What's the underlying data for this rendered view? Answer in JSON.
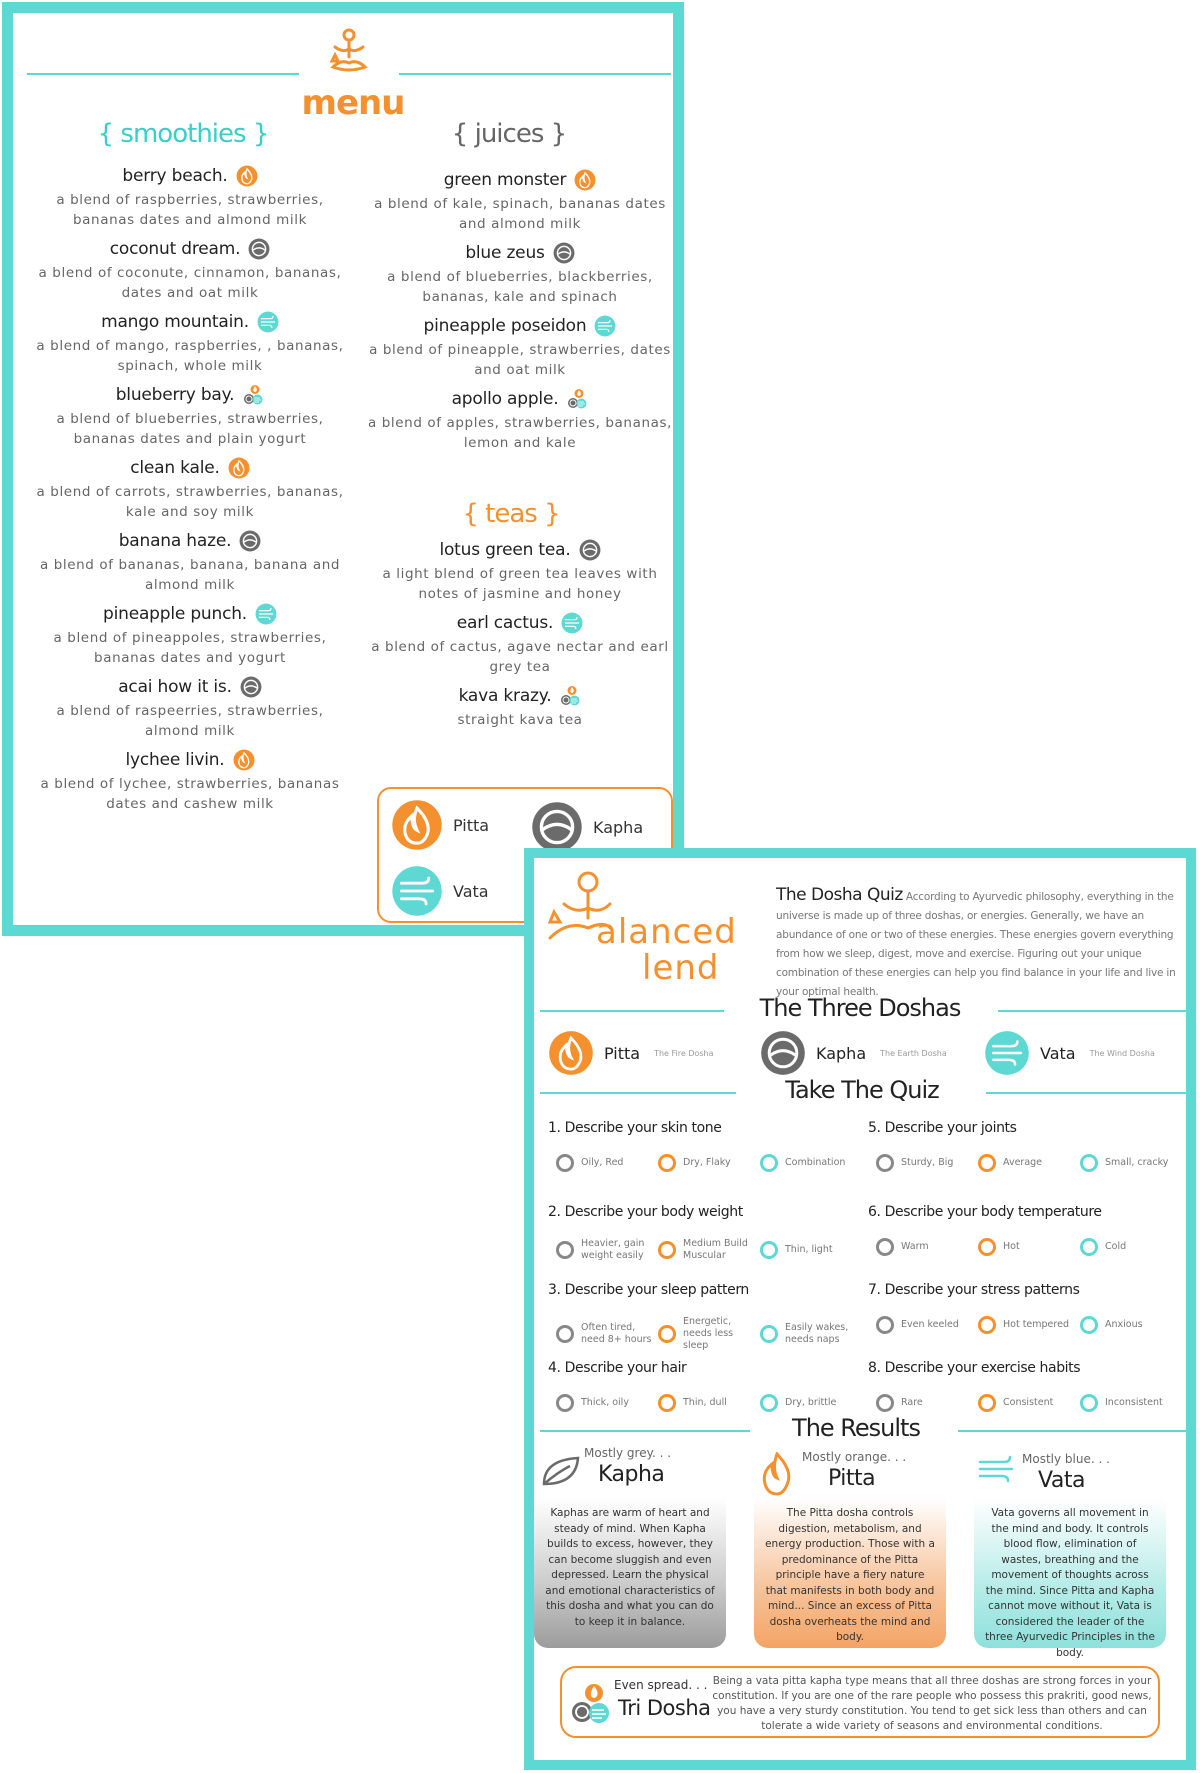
{
  "menu": {
    "title": "menu",
    "sections": {
      "smoothies": "{ smoothies }",
      "juices": "{ juices }",
      "teas": "{ teas }"
    },
    "smoothies": [
      {
        "name": "berry beach.",
        "desc": "a blend of raspberries, strawberries, bananas dates and almond milk",
        "dosha": "pitta"
      },
      {
        "name": "coconut dream.",
        "desc": "a blend of coconute, cinnamon, bananas, dates and oat milk",
        "dosha": "kapha"
      },
      {
        "name": "mango mountain.",
        "desc": "a blend of mango, raspberries, , bananas, spinach, whole milk",
        "dosha": "vata"
      },
      {
        "name": "blueberry bay.",
        "desc": "a blend of blueberries, strawberries, bananas dates and plain yogurt",
        "dosha": "tri"
      },
      {
        "name": "clean kale.",
        "desc": "a blend of carrots, strawberries, bananas, kale and soy milk",
        "dosha": "pitta"
      },
      {
        "name": "banana haze.",
        "desc": "a blend of bananas, banana, banana and almond milk",
        "dosha": "kapha"
      },
      {
        "name": "pineapple punch.",
        "desc": "a blend of pineappoles, strawberries, bananas dates and yogurt",
        "dosha": "vata"
      },
      {
        "name": "acai how it is.",
        "desc": "a blend of raspeerries, strawberries, almond milk",
        "dosha": "kapha"
      },
      {
        "name": "lychee livin.",
        "desc": "a blend of lychee, strawberries, bananas dates and cashew milk",
        "dosha": "pitta"
      }
    ],
    "juices": [
      {
        "name": "green monster",
        "desc": "a blend of kale, spinach, bananas dates and almond milk",
        "dosha": "pitta"
      },
      {
        "name": "blue zeus",
        "desc": "a blend of blueberries, blackberries, bananas, kale and spinach",
        "dosha": "kapha"
      },
      {
        "name": "pineapple poseidon",
        "desc": "a blend of pineapple, strawberries, dates and oat milk",
        "dosha": "vata"
      },
      {
        "name": "apollo apple.",
        "desc": "a blend of apples, strawberries, bananas, lemon and kale",
        "dosha": "tri"
      }
    ],
    "teas": [
      {
        "name": "lotus green tea.",
        "desc": "a light blend of green tea leaves with notes of jasmine and honey",
        "dosha": "kapha"
      },
      {
        "name": "earl cactus.",
        "desc": "a blend of cactus, agave nectar and earl grey tea",
        "dosha": "vata"
      },
      {
        "name": "kava krazy.",
        "desc": "straight kava tea",
        "dosha": "tri"
      }
    ],
    "legend": {
      "pitta": "Pitta",
      "kapha": "Kapha",
      "vata": "Vata"
    }
  },
  "quiz": {
    "brand_line1": "alanced",
    "brand_line2": "lend",
    "intro_title": "The Dosha Quiz",
    "intro_text": "According to Ayurvedic philosophy, everything in the universe is made up of three doshas, or energies. Generally, we have an abundance of one or two of these energies. These energies govern everything from how we sleep, digest, move and exercise. Figuring out your unique combination of these energies can help you find balance in your life and live in your optimal health.",
    "three_doshas_title": "The Three Doshas",
    "doshas": [
      {
        "name": "Pitta",
        "sub": "The Fire Dosha"
      },
      {
        "name": "Kapha",
        "sub": "The Earth Dosha"
      },
      {
        "name": "Vata",
        "sub": "The Wind Dosha"
      }
    ],
    "take_quiz_title": "Take The Quiz",
    "questions": [
      {
        "q": "1. Describe your skin tone",
        "opts": [
          "Oily, Red",
          "Dry, Flaky",
          "Combination"
        ]
      },
      {
        "q": "2. Describe your body weight",
        "opts": [
          "Heavier, gain weight easily",
          "Medium Build Muscular",
          "Thin, light"
        ]
      },
      {
        "q": "3. Describe your sleep pattern",
        "opts": [
          "Often tired, need 8+ hours",
          "Energetic, needs less sleep",
          "Easily wakes, needs naps"
        ]
      },
      {
        "q": "4. Describe your hair",
        "opts": [
          "Thick, oily",
          "Thin, dull",
          "Dry, brittle"
        ]
      },
      {
        "q": "5. Describe your joints",
        "opts": [
          "Sturdy, Big",
          "Average",
          "Small, cracky"
        ]
      },
      {
        "q": "6. Describe your body temperature",
        "opts": [
          "Warm",
          "Hot",
          "Cold"
        ]
      },
      {
        "q": "7. Describe your stress patterns",
        "opts": [
          "Even keeled",
          "Hot tempered",
          "Anxious"
        ]
      },
      {
        "q": "8. Describe your exercise habits",
        "opts": [
          "Rare",
          "Consistent",
          "Inconsistent"
        ]
      }
    ],
    "results_title": "The Results",
    "results": [
      {
        "sub": "Mostly grey. . .",
        "name": "Kapha",
        "text": "Kaphas are warm of heart and steady of mind. When Kapha builds to excess, however, they can become sluggish and even depressed. Learn the physical and emotional characteristics of this dosha and what you can do to keep it in balance."
      },
      {
        "sub": "Mostly orange. . .",
        "name": "Pitta",
        "text": "The Pitta dosha controls digestion, metabolism, and energy production. Those with a predominance of the Pitta principle have a fiery nature that manifests in both body and mind... Since an excess of Pitta dosha overheats the mind and body."
      },
      {
        "sub": "Mostly blue. . .",
        "name": "Vata",
        "text": "Vata governs all movement in the mind and body. It controls blood flow, elimination of wastes, breathing and the movement of thoughts across the mind. Since Pitta and Kapha cannot move without it, Vata is considered the leader of the three Ayurvedic Principles in the body."
      }
    ],
    "tri": {
      "sub": "Even spread. . .",
      "name": "Tri Dosha",
      "text": "Being a vata pitta kapha type means that all three doshas are strong forces in your constitution. If you are one of the rare people who possess this prakriti, good news, you have a very sturdy constitution. You tend to get sick less than others and can tolerate a wide variety of seasons and environmental conditions."
    }
  },
  "colors": {
    "teal": "#5ed8d2",
    "orange": "#f5902f",
    "grey": "#6b6b6b"
  },
  "icons": [
    "yoga-logo-icon",
    "pitta-flame-icon",
    "kapha-earth-icon",
    "vata-wind-icon",
    "tri-dosha-icon"
  ]
}
